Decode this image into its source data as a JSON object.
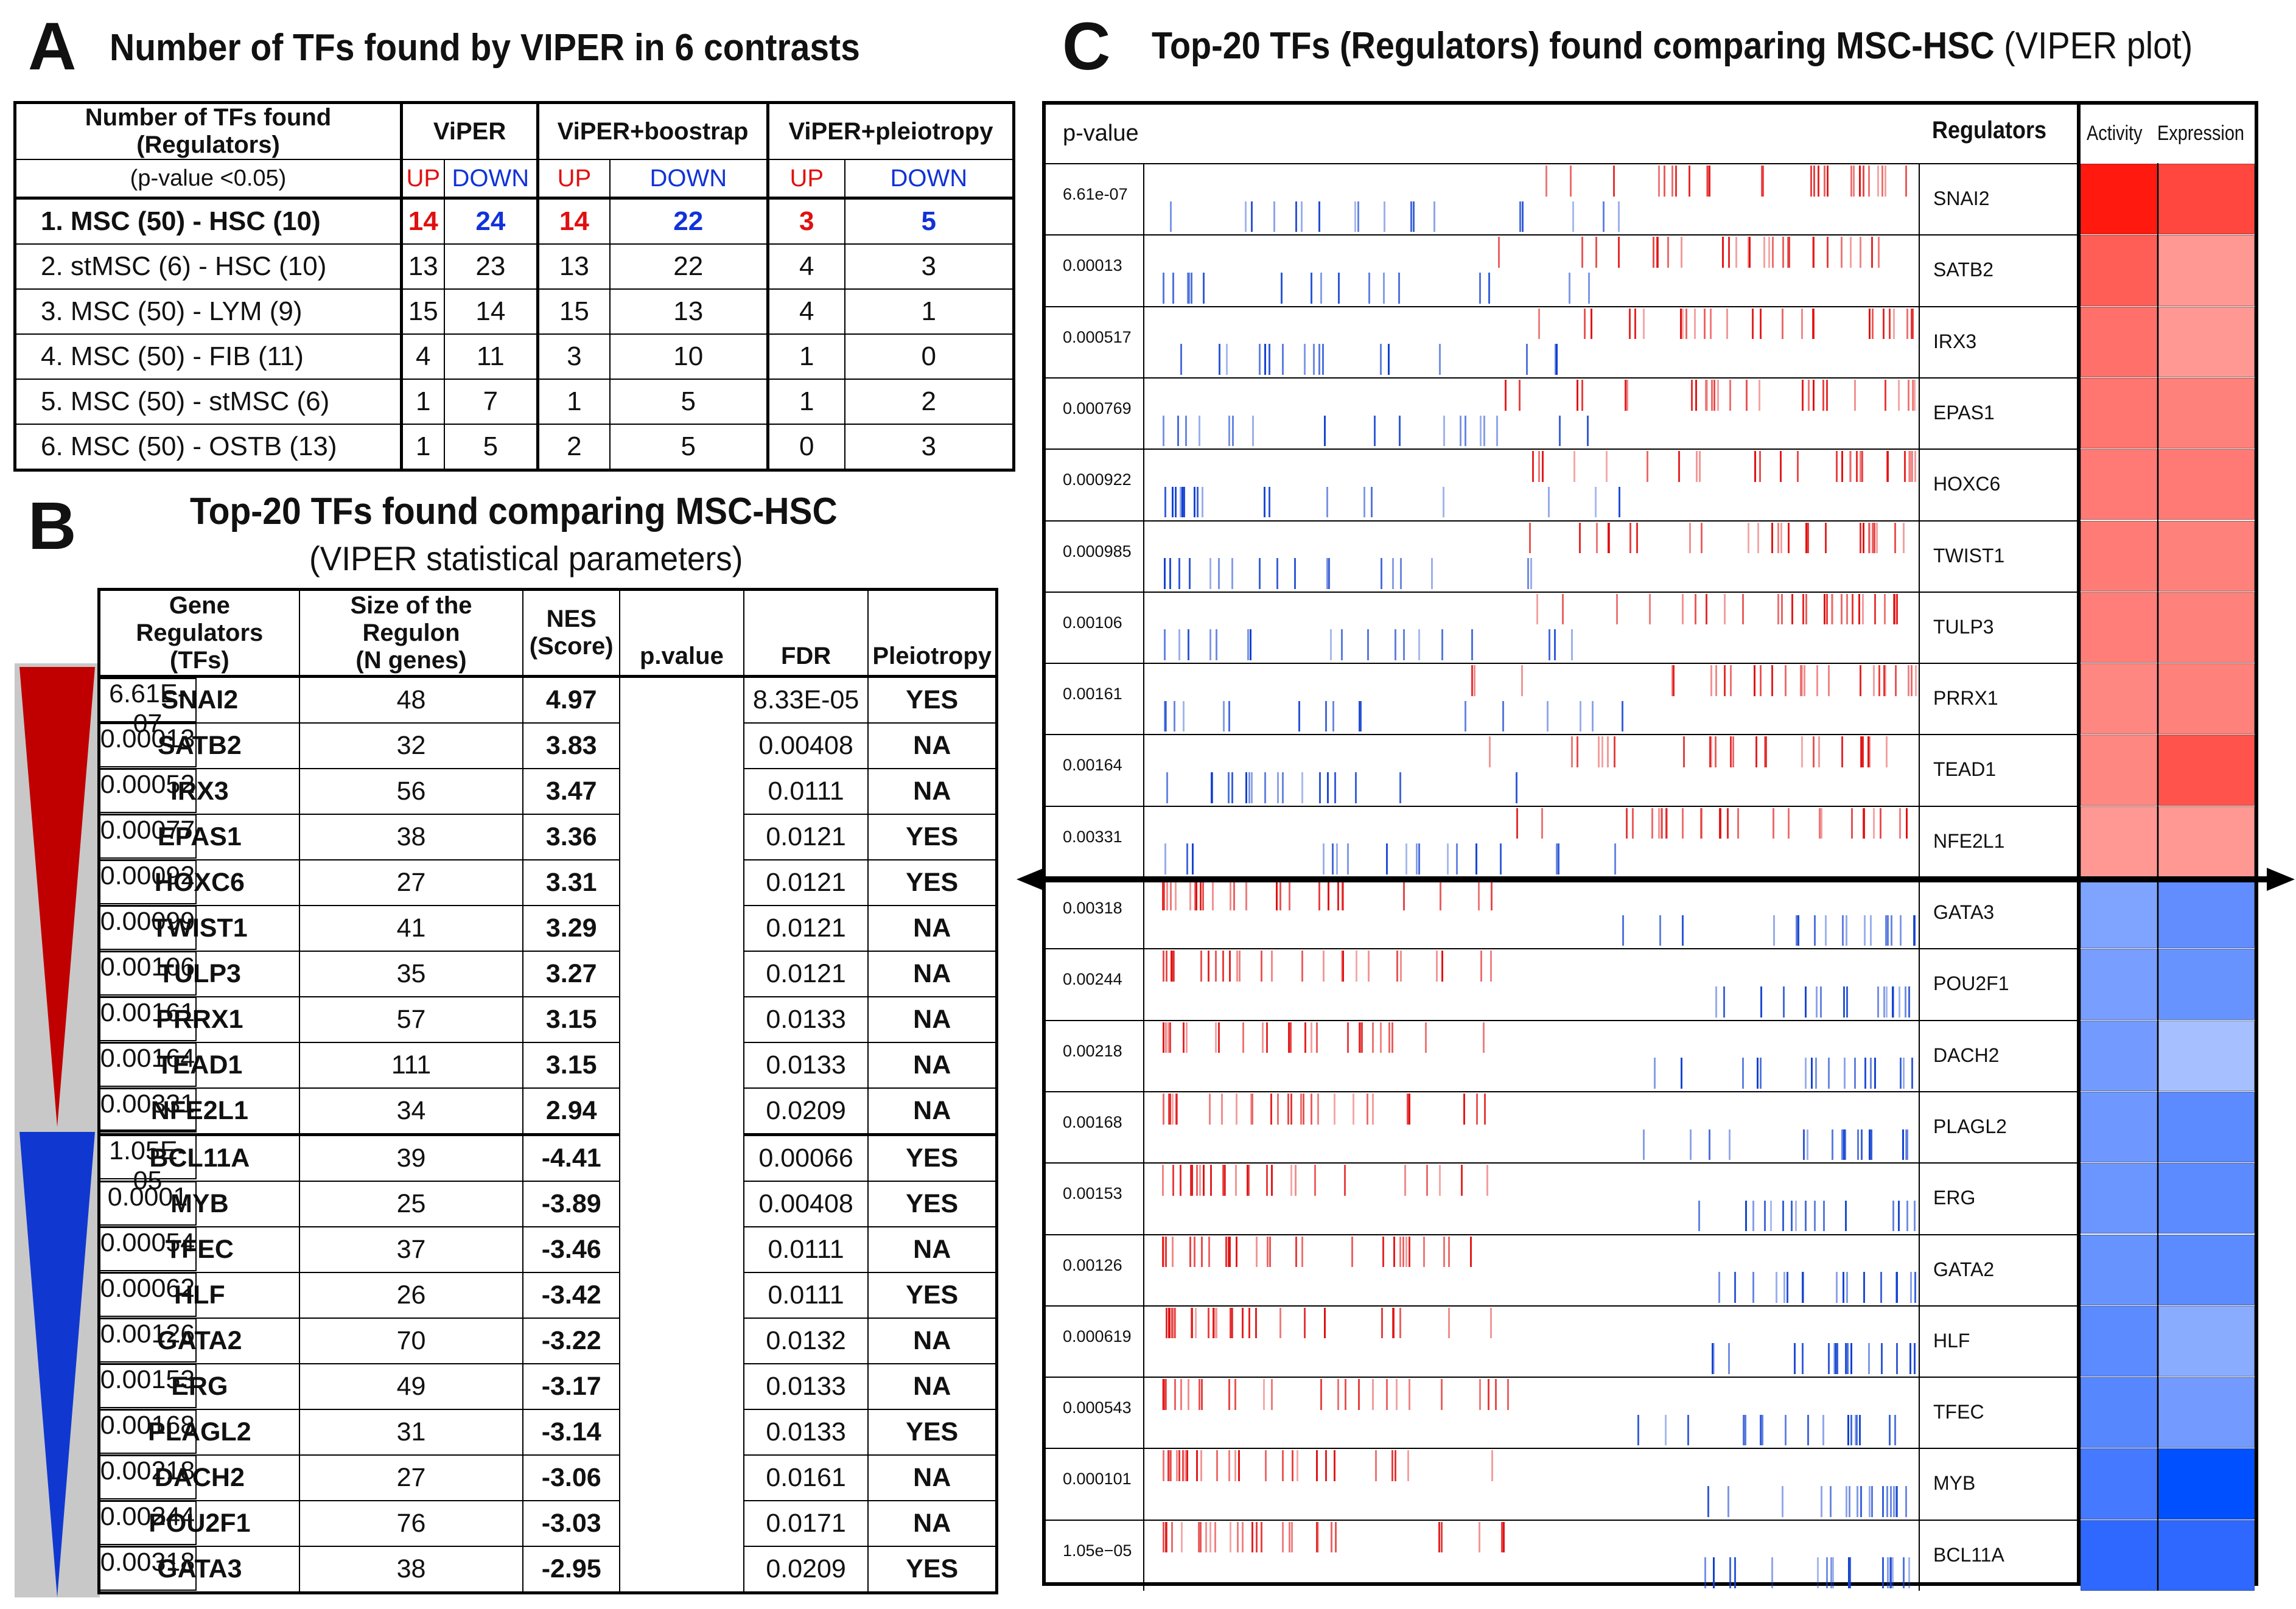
{
  "panelA": {
    "label": "A",
    "title": "Number of TFs found by VIPER in 6 contrasts",
    "header_col1_line1": "Number of TFs found (Regulators)",
    "header_col1_line2": "(p-value <0.05)",
    "groups": [
      "ViPER",
      "ViPER+boostrap",
      "ViPER+pleiotropy"
    ],
    "up_label": "UP",
    "down_label": "DOWN",
    "rows": [
      {
        "label": "1. MSC (50) - HSC (10)",
        "values": [
          "14",
          "24",
          "14",
          "22",
          "3",
          "5"
        ]
      },
      {
        "label": "2. stMSC (6) - HSC (10)",
        "values": [
          "13",
          "23",
          "13",
          "22",
          "4",
          "3"
        ]
      },
      {
        "label": "3. MSC (50) - LYM (9)",
        "values": [
          "15",
          "14",
          "15",
          "13",
          "4",
          "1"
        ]
      },
      {
        "label": "4. MSC (50) - FIB (11)",
        "values": [
          "4",
          "11",
          "3",
          "10",
          "1",
          "0"
        ]
      },
      {
        "label": "5. MSC (50) - stMSC (6)",
        "values": [
          "1",
          "7",
          "1",
          "5",
          "1",
          "2"
        ]
      },
      {
        "label": "6. MSC (50) - OSTB (13)",
        "values": [
          "1",
          "5",
          "2",
          "5",
          "0",
          "3"
        ]
      }
    ]
  },
  "panelB": {
    "label": "B",
    "title": "Top-20 TFs found comparing MSC-HSC",
    "subtitle": "(VIPER statistical parameters)",
    "headers": {
      "gene_l1": "Gene Regulators",
      "gene_l2": "(TFs)",
      "size_l1": "Size of the Regulon",
      "size_l2": "(N genes)",
      "nes_l1": "NES",
      "nes_l2": "(Score)",
      "pvalue": "p.value",
      "fdr": "FDR",
      "pleio": "Pleiotropy"
    },
    "rows": [
      [
        "SNAI2",
        "48",
        "4.97",
        "6.61E-07",
        "8.33E-05",
        "YES"
      ],
      [
        "SATB2",
        "32",
        "3.83",
        "0.00013",
        "0.00408",
        "NA"
      ],
      [
        "IRX3",
        "56",
        "3.47",
        "0.00052",
        "0.0111",
        "NA"
      ],
      [
        "EPAS1",
        "38",
        "3.36",
        "0.00077",
        "0.0121",
        "YES"
      ],
      [
        "HOXC6",
        "27",
        "3.31",
        "0.00092",
        "0.0121",
        "YES"
      ],
      [
        "TWIST1",
        "41",
        "3.29",
        "0.00099",
        "0.0121",
        "NA"
      ],
      [
        "TULP3",
        "35",
        "3.27",
        "0.00106",
        "0.0121",
        "NA"
      ],
      [
        "PRRX1",
        "57",
        "3.15",
        "0.00161",
        "0.0133",
        "NA"
      ],
      [
        "TEAD1",
        "111",
        "3.15",
        "0.00164",
        "0.0133",
        "NA"
      ],
      [
        "NFE2L1",
        "34",
        "2.94",
        "0.00331",
        "0.0209",
        "NA"
      ],
      [
        "BCL11A",
        "39",
        "-4.41",
        "1.05E-05",
        "0.00066",
        "YES"
      ],
      [
        "MYB",
        "25",
        "-3.89",
        "0.0001",
        "0.00408",
        "YES"
      ],
      [
        "TFEC",
        "37",
        "-3.46",
        "0.00054",
        "0.0111",
        "NA"
      ],
      [
        "HLF",
        "26",
        "-3.42",
        "0.00062",
        "0.0111",
        "YES"
      ],
      [
        "GATA2",
        "70",
        "-3.22",
        "0.00126",
        "0.0132",
        "NA"
      ],
      [
        "ERG",
        "49",
        "-3.17",
        "0.00153",
        "0.0133",
        "NA"
      ],
      [
        "PLAGL2",
        "31",
        "-3.14",
        "0.00168",
        "0.0133",
        "YES"
      ],
      [
        "DACH2",
        "27",
        "-3.06",
        "0.00218",
        "0.0161",
        "NA"
      ],
      [
        "POU2F1",
        "76",
        "-3.03",
        "0.00244",
        "0.0171",
        "NA"
      ],
      [
        "GATA3",
        "38",
        "-2.95",
        "0.00318",
        "0.0209",
        "YES"
      ]
    ]
  },
  "panelC": {
    "label": "C",
    "title_bold": "Top-20 TFs (Regulators) found comparing MSC-HSC",
    "title_normal": " (VIPER plot)",
    "col_pvalue": "p-value",
    "col_regulators": "Regulators",
    "col_activity": "Activity",
    "col_expression": "Expression",
    "colors": {
      "up": "#e01010",
      "down": "#1040d0"
    },
    "rows": [
      {
        "p": "6.61e-07",
        "name": "SNAI2",
        "activity": 1.0,
        "expression": 0.8
      },
      {
        "p": "0.00013",
        "name": "SATB2",
        "activity": 0.7,
        "expression": 0.45
      },
      {
        "p": "0.000517",
        "name": "IRX3",
        "activity": 0.62,
        "expression": 0.45
      },
      {
        "p": "0.000769",
        "name": "EPAS1",
        "activity": 0.6,
        "expression": 0.55
      },
      {
        "p": "0.000922",
        "name": "HOXC6",
        "activity": 0.58,
        "expression": 0.58
      },
      {
        "p": "0.000985",
        "name": "TWIST1",
        "activity": 0.57,
        "expression": 0.55
      },
      {
        "p": "0.00106",
        "name": "TULP3",
        "activity": 0.56,
        "expression": 0.55
      },
      {
        "p": "0.00161",
        "name": "PRRX1",
        "activity": 0.52,
        "expression": 0.55
      },
      {
        "p": "0.00164",
        "name": "TEAD1",
        "activity": 0.52,
        "expression": 0.75
      },
      {
        "p": "0.00331",
        "name": "NFE2L1",
        "activity": 0.45,
        "expression": 0.45
      },
      {
        "p": "0.00318",
        "name": "GATA3",
        "activity": -0.45,
        "expression": -0.58
      },
      {
        "p": "0.00244",
        "name": "POU2F1",
        "activity": -0.48,
        "expression": -0.55
      },
      {
        "p": "0.00218",
        "name": "DACH2",
        "activity": -0.5,
        "expression": -0.28
      },
      {
        "p": "0.00168",
        "name": "PLAGL2",
        "activity": -0.52,
        "expression": -0.6
      },
      {
        "p": "0.00153",
        "name": "ERG",
        "activity": -0.53,
        "expression": -0.6
      },
      {
        "p": "0.00126",
        "name": "GATA2",
        "activity": -0.55,
        "expression": -0.6
      },
      {
        "p": "0.000619",
        "name": "HLF",
        "activity": -0.6,
        "expression": -0.4
      },
      {
        "p": "0.000543",
        "name": "TFEC",
        "activity": -0.62,
        "expression": -0.5
      },
      {
        "p": "0.000101",
        "name": "MYB",
        "activity": -0.7,
        "expression": -1.0
      },
      {
        "p": "1.05e−05",
        "name": "BCL11A",
        "activity": -0.8,
        "expression": -0.8
      }
    ]
  }
}
